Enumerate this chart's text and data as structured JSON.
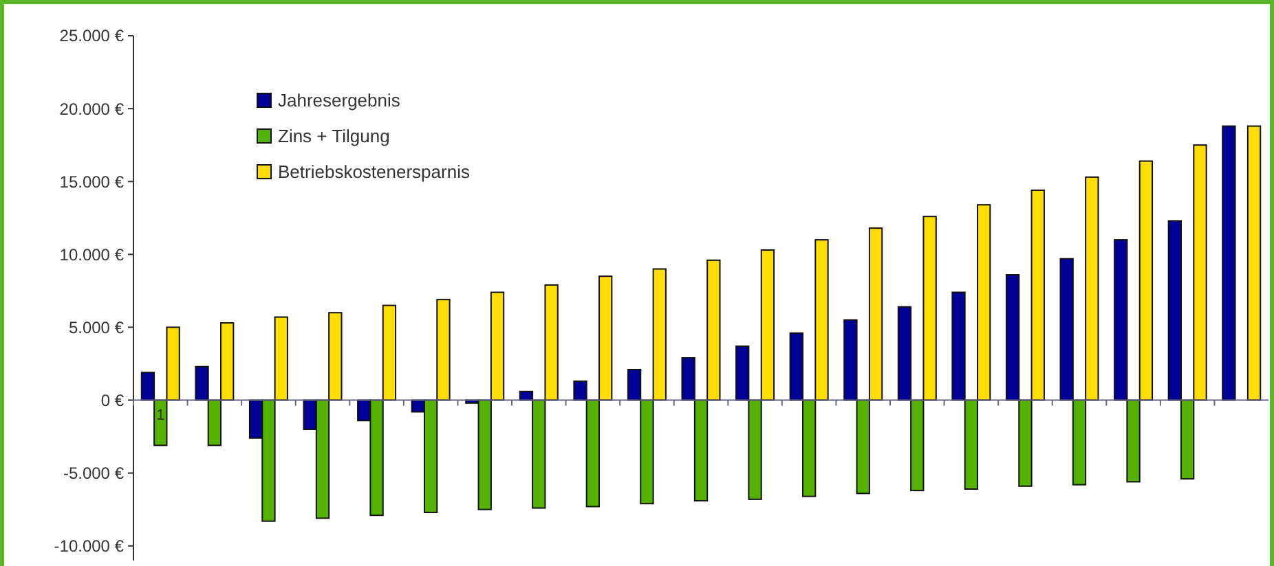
{
  "chart_data": {
    "type": "bar",
    "categories": [
      "1",
      null,
      null,
      null,
      null,
      null,
      null,
      null,
      null,
      null,
      null,
      null,
      null,
      null,
      null,
      null,
      null,
      null,
      null,
      null,
      null
    ],
    "series": [
      {
        "name": "Jahresergebnis",
        "color": "#000099",
        "values": [
          1900,
          2300,
          -2600,
          -2000,
          -1400,
          -800,
          -200,
          600,
          1300,
          2100,
          2900,
          3700,
          4600,
          5500,
          6400,
          7400,
          8600,
          9700,
          11000,
          12300,
          18800
        ]
      },
      {
        "name": "Zins + Tilgung",
        "color": "#55b300",
        "values": [
          -3100,
          -3100,
          -8300,
          -8100,
          -7900,
          -7700,
          -7500,
          -7400,
          -7300,
          -7100,
          -6900,
          -6800,
          -6600,
          -6400,
          -6200,
          -6100,
          -5900,
          -5800,
          -5600,
          -5400,
          null
        ]
      },
      {
        "name": "Betriebskostenersparnis",
        "color": "#ffdd00",
        "values": [
          5000,
          5300,
          5700,
          6000,
          6500,
          6900,
          7400,
          7900,
          8500,
          9000,
          9600,
          10300,
          11000,
          11800,
          12600,
          13400,
          14400,
          15300,
          16400,
          17500,
          18800
        ]
      }
    ],
    "ylim": [
      -11000,
      25000
    ],
    "yticks": [
      {
        "value": -10000,
        "label": "-10.000 €"
      },
      {
        "value": -5000,
        "label": "-5.000 €"
      },
      {
        "value": 0,
        "label": "0 €"
      },
      {
        "value": 5000,
        "label": "5.000 €"
      },
      {
        "value": 10000,
        "label": "10.000 €"
      },
      {
        "value": 15000,
        "label": "15.000 €"
      },
      {
        "value": 20000,
        "label": "20.000 €"
      },
      {
        "value": 25000,
        "label": "25.000 €"
      }
    ],
    "legend": "top left"
  }
}
